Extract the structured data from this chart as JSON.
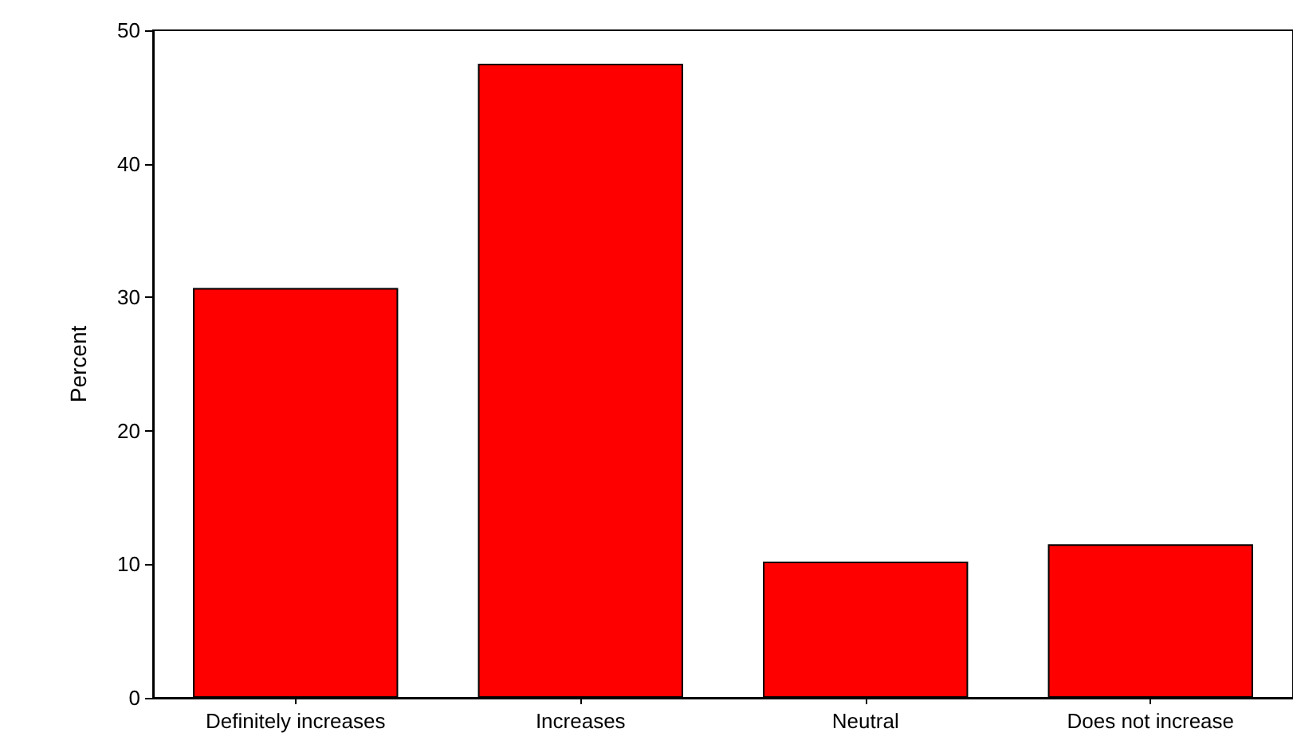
{
  "chart_data": {
    "type": "bar",
    "ylabel": "Percent",
    "categories": [
      "Definitely increases",
      "Increases",
      "Neutral",
      "Does not increase"
    ],
    "values": [
      30.7,
      47.5,
      10.2,
      11.5
    ],
    "color": "#ff0000",
    "ylim": [
      0,
      50
    ],
    "yticks": [
      0,
      10,
      20,
      30,
      40,
      50
    ],
    "grid": false
  }
}
